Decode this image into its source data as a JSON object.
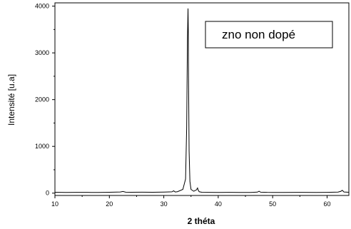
{
  "chart_data": {
    "type": "line",
    "title": "",
    "xlabel": "2 théta",
    "ylabel": "Intensité [u.a]",
    "xlim": [
      10,
      64
    ],
    "ylim": [
      -50,
      4070
    ],
    "x_ticks": [
      10,
      20,
      30,
      40,
      50,
      60
    ],
    "x_tick_labels": [
      "10",
      "20",
      "30",
      "40",
      "50",
      "60"
    ],
    "y_ticks": [
      0,
      1000,
      2000,
      3000,
      4000
    ],
    "y_tick_labels": [
      "0",
      "1000",
      "2000",
      "3000",
      "4000"
    ],
    "grid": false,
    "legend": {
      "placement": "top-right",
      "entries": [
        "zno non dopé"
      ]
    },
    "series": [
      {
        "name": "zno non dopé",
        "color": "#000000",
        "x": [
          10,
          12,
          14,
          16,
          18,
          20,
          22,
          22.5,
          23,
          24,
          26,
          28,
          30,
          31.5,
          31.8,
          32.1,
          32.5,
          33.5,
          34.0,
          34.2,
          34.35,
          34.45,
          34.5,
          34.55,
          34.65,
          34.8,
          35.0,
          35.5,
          36.0,
          36.2,
          36.3,
          36.5,
          37.0,
          38,
          40,
          42,
          44,
          46,
          47.2,
          47.5,
          47.8,
          49,
          52,
          55,
          58,
          60,
          62,
          62.5,
          62.8,
          63.1,
          64
        ],
        "y": [
          18,
          15,
          17,
          16,
          14,
          18,
          25,
          35,
          20,
          18,
          20,
          18,
          22,
          28,
          50,
          25,
          30,
          80,
          300,
          1400,
          3300,
          3950,
          3500,
          2400,
          900,
          250,
          80,
          40,
          70,
          110,
          70,
          30,
          18,
          16,
          15,
          16,
          14,
          15,
          22,
          40,
          20,
          16,
          15,
          16,
          14,
          16,
          22,
          38,
          60,
          25,
          18
        ]
      }
    ]
  }
}
